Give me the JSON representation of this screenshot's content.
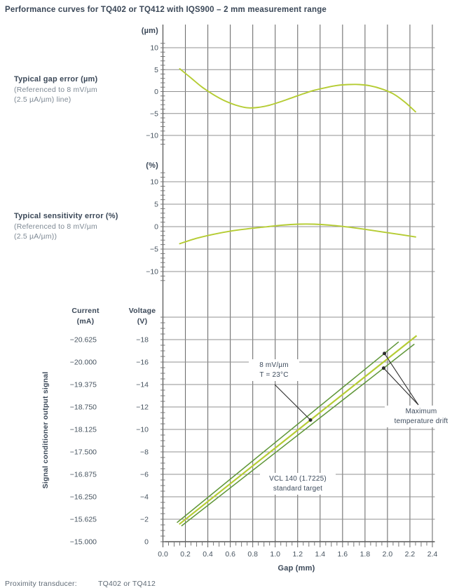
{
  "title": "Performance curves for TQ402 or TQ412 with IQS900 – 2 mm measurement range",
  "panels": {
    "gap_error": {
      "label": "Typical gap error (µm)",
      "sub1": "(Referenced to 8 mV/µm",
      "sub2": "(2.5 µA/µm) line)",
      "unit": "(µm)"
    },
    "sensitivity_error": {
      "label": "Typical sensitivity error (%)",
      "sub1": "(Referenced to 8 mV/µm",
      "sub2": "(2.5 µA/µm))",
      "unit": "(%)"
    },
    "output_signal": {
      "ylabel": "Signal conditioner output signal",
      "current_header_line1": "Current",
      "current_header_line2": "(mA)",
      "voltage_header_line1": "Voltage",
      "voltage_header_line2": "(V)"
    }
  },
  "xaxis": {
    "label": "Gap (mm)",
    "tick_values": [
      0,
      0.2,
      0.4,
      0.6,
      0.8,
      1.0,
      1.2,
      1.4,
      1.6,
      1.8,
      2.0,
      2.2,
      2.4
    ],
    "tick_labels": [
      "0.0",
      "0.2",
      "0.4",
      "0.6",
      "0.8",
      "1.0",
      "1.2",
      "1.4",
      "1.6",
      "1.8",
      "2.0",
      "2.2",
      "2.4"
    ]
  },
  "annotations": {
    "line_ref": {
      "line1": "8 mV/µm",
      "line2": "T = 23°C"
    },
    "drift": {
      "line1": "Maximum",
      "line2": "temperature drift"
    },
    "target": {
      "line1": "VCL 140 (1.7225)",
      "line2": "standard target"
    }
  },
  "footer": {
    "label": "Proximity transducer:",
    "value": "TQ402 or TQ412"
  },
  "colors": {
    "accent_curve": "#b5cc33",
    "drift_line": "#5f9638",
    "dark_text": "#3a4757",
    "gray_text": "#7e8994",
    "tick_text": "#46535f",
    "grid_h": "#909090",
    "grid_v": "#6f6f6f",
    "axis": "#555555",
    "callout_ink": "#2b2b2b"
  },
  "chart_data": [
    {
      "type": "line",
      "id": "gap_error",
      "title": "Typical gap error (µm)",
      "ylabel": "(µm)",
      "xlabel": "Gap (mm)",
      "xlim": [
        0,
        2.4
      ],
      "ylim": [
        -12,
        12
      ],
      "grid": true,
      "yticks": [
        10,
        5,
        0,
        -5,
        -10
      ],
      "ytick_labels": [
        "10",
        "5",
        "0",
        "−5",
        "−10"
      ],
      "series": [
        {
          "name": "typical gap error",
          "x": [
            0.15,
            0.25,
            0.35,
            0.45,
            0.55,
            0.65,
            0.75,
            0.85,
            0.95,
            1.05,
            1.15,
            1.25,
            1.35,
            1.45,
            1.55,
            1.65,
            1.75,
            1.85,
            1.95,
            2.05,
            2.15,
            2.25
          ],
          "y": [
            5.2,
            3.1,
            1.0,
            -0.7,
            -2.1,
            -3.1,
            -3.7,
            -3.6,
            -3.1,
            -2.3,
            -1.4,
            -0.5,
            0.3,
            0.9,
            1.4,
            1.6,
            1.6,
            1.3,
            0.6,
            -0.5,
            -2.3,
            -4.6
          ]
        }
      ]
    },
    {
      "type": "line",
      "id": "sensitivity_error",
      "title": "Typical sensitivity error (%)",
      "ylabel": "(%)",
      "xlabel": "Gap (mm)",
      "xlim": [
        0,
        2.4
      ],
      "ylim": [
        -12,
        12
      ],
      "grid": true,
      "yticks": [
        10,
        5,
        0,
        -5,
        -10
      ],
      "ytick_labels": [
        "10",
        "5",
        "0",
        "−5",
        "−10"
      ],
      "series": [
        {
          "name": "typical sensitivity error",
          "x": [
            0.15,
            0.3,
            0.45,
            0.6,
            0.75,
            0.9,
            1.05,
            1.2,
            1.35,
            1.5,
            1.65,
            1.8,
            1.95,
            2.1,
            2.25
          ],
          "y": [
            -3.8,
            -2.6,
            -1.7,
            -1.0,
            -0.5,
            -0.1,
            0.3,
            0.55,
            0.55,
            0.3,
            -0.1,
            -0.6,
            -1.15,
            -1.7,
            -2.3
          ]
        }
      ]
    },
    {
      "type": "line",
      "id": "output_signal",
      "title": "Signal conditioner output signal",
      "xlabel": "Gap (mm)",
      "xlim": [
        0,
        2.4
      ],
      "ylim_volts": [
        -20,
        0
      ],
      "grid": true,
      "voltage_ticks": [
        -18,
        -16,
        -14,
        -12,
        -10,
        -8,
        -6,
        -4,
        -2,
        0
      ],
      "voltage_tick_labels": [
        "−18",
        "−16",
        "−14",
        "−12",
        "−10",
        "−8",
        "−6",
        "−4",
        "−2",
        "0"
      ],
      "current_tick_labels": [
        "−20.625",
        "−20.000",
        "−19.375",
        "−18.750",
        "−18.125",
        "−17.500",
        "−16.875",
        "−16.250",
        "−15.625",
        "−15.000"
      ],
      "series": [
        {
          "name": "8 mV/µm, T = 23°C",
          "role": "nominal",
          "x": [
            0.145,
            2.26
          ],
          "y_volts": [
            -1.55,
            -18.35
          ]
        },
        {
          "name": "maximum temperature drift (upper)",
          "role": "drift",
          "x": [
            0.125,
            2.1
          ],
          "y_volts": [
            -1.7,
            -17.8
          ]
        },
        {
          "name": "maximum temperature drift (lower)",
          "role": "drift",
          "x": [
            0.165,
            2.24
          ],
          "y_volts": [
            -1.4,
            -17.6
          ]
        }
      ]
    }
  ]
}
